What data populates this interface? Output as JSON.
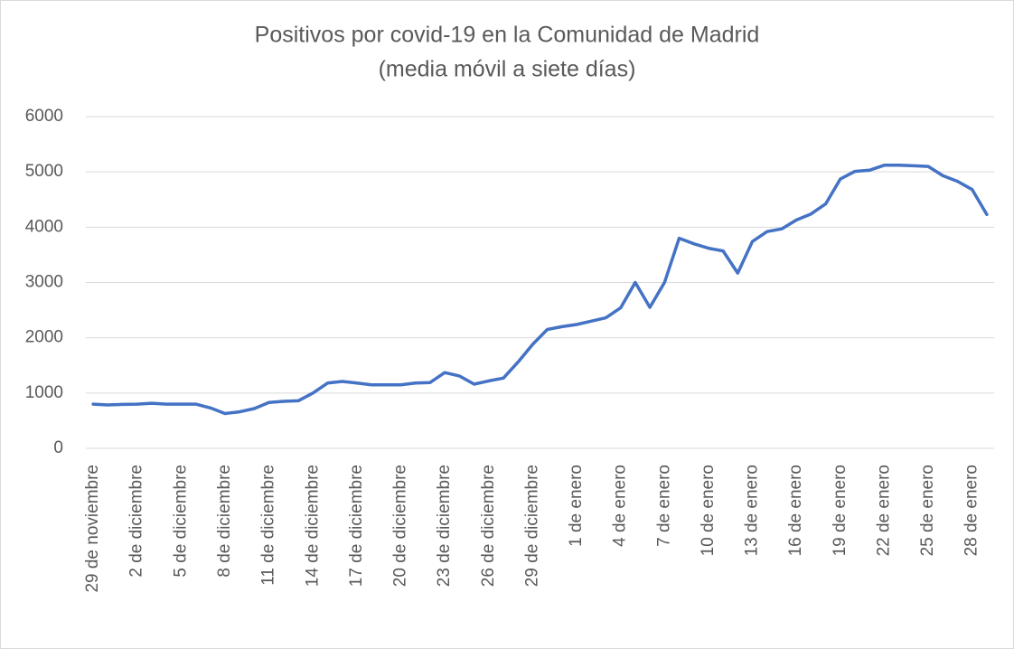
{
  "chart_data": {
    "type": "line",
    "title": "Positivos por covid-19 en la Comunidad de Madrid",
    "subtitle": "(media móvil a siete días)",
    "categories": [
      "29 de noviembre",
      null,
      null,
      "2 de diciembre",
      null,
      null,
      "5 de diciembre",
      null,
      null,
      "8 de diciembre",
      null,
      null,
      "11 de diciembre",
      null,
      null,
      "14 de diciembre",
      null,
      null,
      "17 de diciembre",
      null,
      null,
      "20 de diciembre",
      null,
      null,
      "23 de diciembre",
      null,
      null,
      "26 de diciembre",
      null,
      null,
      "29 de diciembre",
      null,
      null,
      "1 de enero",
      null,
      null,
      "4 de enero",
      null,
      null,
      "7 de enero",
      null,
      null,
      "10 de enero",
      null,
      null,
      "13 de enero",
      null,
      null,
      "16 de enero",
      null,
      null,
      "19 de enero",
      null,
      null,
      "22 de enero",
      null,
      null,
      "25 de enero",
      null,
      null,
      "28 de enero",
      null
    ],
    "series": [
      {
        "name": "Positivos",
        "color": "#4472c4",
        "values": [
          800,
          785,
          795,
          800,
          815,
          800,
          800,
          800,
          730,
          630,
          660,
          720,
          830,
          850,
          860,
          1000,
          1180,
          1210,
          1180,
          1150,
          1150,
          1150,
          1180,
          1190,
          1370,
          1310,
          1160,
          1220,
          1270,
          1560,
          1880,
          2150,
          2200,
          2240,
          2300,
          2360,
          2540,
          3000,
          2550,
          3000,
          3800,
          3700,
          3620,
          3570,
          3170,
          3740,
          3920,
          3970,
          4130,
          4240,
          4420,
          4870,
          5010,
          5030,
          5120,
          5120,
          5110,
          5100,
          4930,
          4830,
          4680,
          4230
        ]
      }
    ],
    "ylim": [
      0,
      6000
    ],
    "yticks": [
      0,
      1000,
      2000,
      3000,
      4000,
      5000,
      6000
    ],
    "grid": true
  }
}
